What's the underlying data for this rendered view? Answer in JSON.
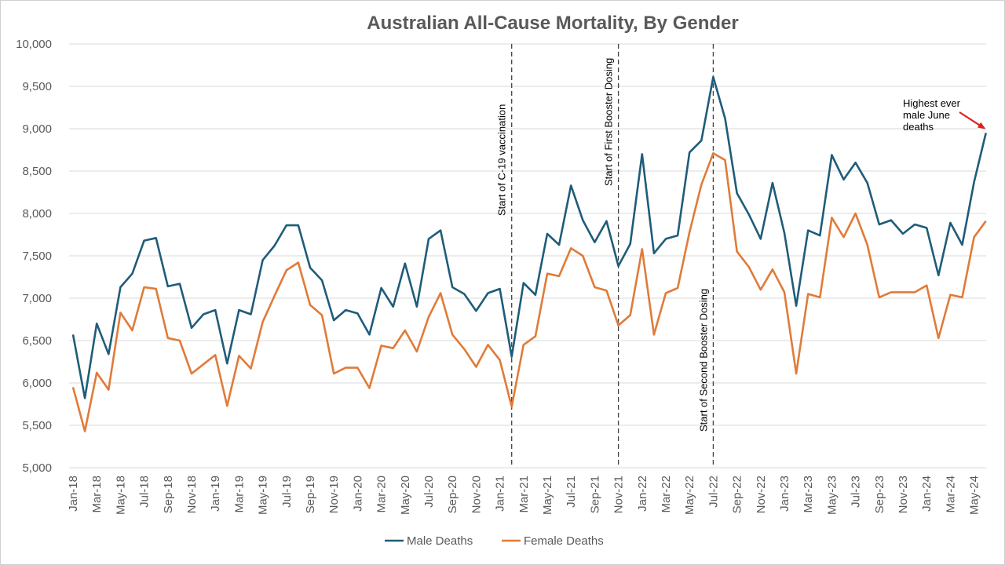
{
  "chart_data": {
    "type": "line",
    "title": "Australian All-Cause Mortality, By Gender",
    "xlabel": "",
    "ylabel": "",
    "ylim": [
      5000,
      10000
    ],
    "y_ticks": [
      "5,000",
      "5,500",
      "6,000",
      "6,500",
      "7,000",
      "7,500",
      "8,000",
      "8,500",
      "9,000",
      "9,500",
      "10,000"
    ],
    "y_tick_values": [
      5000,
      5500,
      6000,
      6500,
      7000,
      7500,
      8000,
      8500,
      9000,
      9500,
      10000
    ],
    "grid": true,
    "legend_position": "bottom",
    "x": [
      "Jan-18",
      "Feb-18",
      "Mar-18",
      "Apr-18",
      "May-18",
      "Jun-18",
      "Jul-18",
      "Aug-18",
      "Sep-18",
      "Oct-18",
      "Nov-18",
      "Dec-18",
      "Jan-19",
      "Feb-19",
      "Mar-19",
      "Apr-19",
      "May-19",
      "Jun-19",
      "Jul-19",
      "Aug-19",
      "Sep-19",
      "Oct-19",
      "Nov-19",
      "Dec-19",
      "Jan-20",
      "Feb-20",
      "Mar-20",
      "Apr-20",
      "May-20",
      "Jun-20",
      "Jul-20",
      "Aug-20",
      "Sep-20",
      "Oct-20",
      "Nov-20",
      "Dec-20",
      "Jan-21",
      "Feb-21",
      "Mar-21",
      "Apr-21",
      "May-21",
      "Jun-21",
      "Jul-21",
      "Aug-21",
      "Sep-21",
      "Oct-21",
      "Nov-21",
      "Dec-21",
      "Jan-22",
      "Feb-22",
      "Mar-22",
      "Apr-22",
      "May-22",
      "Jun-22",
      "Jul-22",
      "Aug-22",
      "Sep-22",
      "Oct-22",
      "Nov-22",
      "Dec-22",
      "Jan-23",
      "Feb-23",
      "Mar-23",
      "Apr-23",
      "May-23",
      "Jun-23",
      "Jul-23",
      "Aug-23",
      "Sep-23",
      "Oct-23",
      "Nov-23",
      "Dec-23",
      "Jan-24",
      "Feb-24",
      "Mar-24",
      "Apr-24",
      "May-24",
      "Jun-24"
    ],
    "x_tick_labels": [
      "Jan-18",
      "Mar-18",
      "May-18",
      "Jul-18",
      "Sep-18",
      "Nov-18",
      "Jan-19",
      "Mar-19",
      "May-19",
      "Jul-19",
      "Sep-19",
      "Nov-19",
      "Jan-20",
      "Mar-20",
      "May-20",
      "Jul-20",
      "Sep-20",
      "Nov-20",
      "Jan-21",
      "Mar-21",
      "May-21",
      "Jul-21",
      "Sep-21",
      "Nov-21",
      "Jan-22",
      "Mar-22",
      "May-22",
      "Jul-22",
      "Sep-22",
      "Nov-22",
      "Jan-23",
      "Mar-23",
      "May-23",
      "Jul-23",
      "Sep-23",
      "Nov-23",
      "Jan-24",
      "Mar-24",
      "May-24"
    ],
    "series": [
      {
        "name": "Male Deaths",
        "color": "#1f5c7a",
        "values": [
          6570,
          5820,
          6700,
          6340,
          7130,
          7290,
          7680,
          7710,
          7140,
          7170,
          6650,
          6810,
          6860,
          6230,
          6860,
          6810,
          7450,
          7620,
          7860,
          7860,
          7360,
          7210,
          6740,
          6860,
          6820,
          6570,
          7120,
          6900,
          7410,
          6900,
          7700,
          7800,
          7130,
          7050,
          6850,
          7060,
          7110,
          6310,
          7180,
          7040,
          7760,
          7630,
          8330,
          7920,
          7660,
          7910,
          7380,
          7640,
          8700,
          7530,
          7700,
          7740,
          8720,
          8860,
          9610,
          9120,
          8240,
          7990,
          7700,
          8360,
          7770,
          6910,
          7800,
          7740,
          8690,
          8400,
          8600,
          8360,
          7870,
          7920,
          7760,
          7870,
          7830,
          7270,
          7890,
          7630,
          8370,
          8950
        ]
      },
      {
        "name": "Female Deaths",
        "color": "#e07b39",
        "values": [
          5950,
          5430,
          6120,
          5920,
          6830,
          6620,
          7130,
          7110,
          6530,
          6500,
          6110,
          6220,
          6330,
          5730,
          6320,
          6170,
          6720,
          7030,
          7330,
          7420,
          6920,
          6800,
          6110,
          6180,
          6180,
          5940,
          6440,
          6410,
          6620,
          6370,
          6780,
          7060,
          6570,
          6400,
          6190,
          6450,
          6270,
          5720,
          6450,
          6550,
          7290,
          7260,
          7590,
          7500,
          7130,
          7090,
          6680,
          6800,
          7580,
          6570,
          7060,
          7120,
          7780,
          8340,
          8710,
          8630,
          7550,
          7370,
          7100,
          7340,
          7070,
          6110,
          7050,
          7010,
          7950,
          7720,
          8000,
          7630,
          7010,
          7070,
          7070,
          7070,
          7150,
          6530,
          7040,
          7010,
          7720,
          7910
        ]
      }
    ],
    "annotations": [
      {
        "text": "Start of C-19 vaccination",
        "x": "Feb-21"
      },
      {
        "text": "Start of First Booster Dosing",
        "x": "Nov-21"
      },
      {
        "text": "Start of Second Booster Dosing",
        "x": "Jul-22"
      }
    ],
    "callout": {
      "lines": [
        "Highest ever",
        "male June",
        "deaths"
      ],
      "arrow_color": "#e02020",
      "target_x": "Jun-24"
    }
  }
}
